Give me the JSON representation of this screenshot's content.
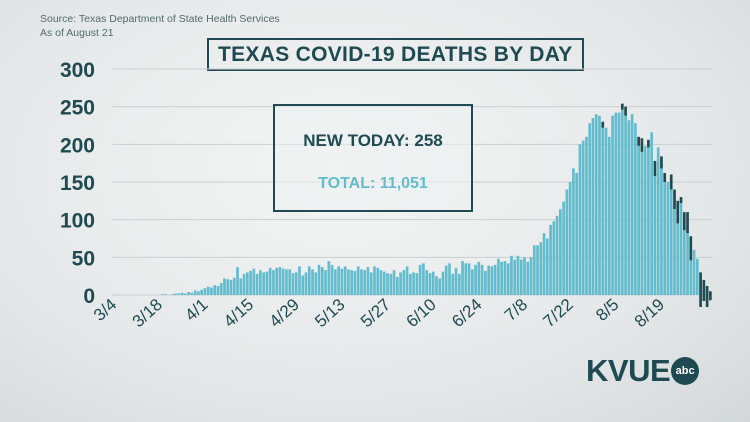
{
  "source": {
    "line1": "Source: Texas Department of State Health Services",
    "line2": "As of August 21"
  },
  "callout": {
    "new_today": "NEW TODAY: 258",
    "total": "TOTAL: 11,051"
  },
  "logo": {
    "wordmark": "KVUE",
    "badge": "abc"
  },
  "colors": {
    "bar": "#62bccd",
    "bar_dark": "#1f4a52",
    "text": "#1f4a52",
    "accent": "#62bccd"
  },
  "chart_data": {
    "type": "bar",
    "title": "TEXAS COVID-19 DEATHS BY DAY",
    "xlabel": "",
    "ylabel": "",
    "ylim": [
      0,
      300
    ],
    "yticks": [
      0,
      50,
      100,
      150,
      200,
      250,
      300
    ],
    "xtick_labels": [
      "3/4",
      "3/18",
      "4/1",
      "4/15",
      "4/29",
      "5/13",
      "5/27",
      "6/10",
      "6/24",
      "7/8",
      "7/22",
      "8/5",
      "8/19"
    ],
    "grid": true,
    "start": "3/4",
    "end": "8/21",
    "values": [
      0,
      0,
      0,
      0,
      0,
      0,
      0,
      0,
      0,
      0,
      0,
      0,
      0,
      0,
      0,
      1,
      1,
      0,
      1,
      2,
      2,
      3,
      2,
      4,
      3,
      6,
      5,
      7,
      9,
      11,
      10,
      13,
      12,
      16,
      22,
      21,
      20,
      23,
      37,
      22,
      28,
      30,
      32,
      35,
      28,
      33,
      30,
      31,
      36,
      33,
      36,
      37,
      35,
      34,
      34,
      29,
      30,
      38,
      26,
      30,
      38,
      34,
      30,
      40,
      37,
      33,
      45,
      40,
      34,
      38,
      35,
      38,
      34,
      33,
      32,
      38,
      34,
      33,
      37,
      30,
      38,
      36,
      33,
      31,
      29,
      28,
      33,
      24,
      30,
      33,
      38,
      28,
      30,
      29,
      40,
      42,
      33,
      29,
      31,
      25,
      22,
      31,
      39,
      42,
      28,
      36,
      28,
      45,
      42,
      42,
      34,
      40,
      44,
      40,
      32,
      39,
      38,
      40,
      48,
      44,
      45,
      42,
      52,
      47,
      52,
      47,
      50,
      44,
      50,
      66,
      66,
      70,
      82,
      75,
      93,
      98,
      105,
      114,
      124,
      140,
      150,
      168,
      162,
      200,
      205,
      210,
      228,
      235,
      240,
      238,
      230,
      222,
      210,
      238,
      242,
      242,
      254,
      250,
      232,
      240,
      228,
      210,
      208,
      198,
      206,
      216,
      178,
      196,
      184,
      162,
      150,
      160,
      140,
      125,
      130,
      110,
      110,
      78,
      60,
      48,
      30,
      20,
      12,
      5
    ],
    "dark_values": [
      0,
      0,
      0,
      0,
      0,
      0,
      0,
      0,
      0,
      0,
      0,
      0,
      0,
      0,
      0,
      0,
      0,
      0,
      0,
      0,
      0,
      0,
      0,
      0,
      0,
      0,
      0,
      0,
      0,
      0,
      0,
      0,
      0,
      0,
      0,
      0,
      0,
      0,
      0,
      0,
      0,
      0,
      0,
      0,
      0,
      0,
      0,
      0,
      0,
      0,
      0,
      0,
      0,
      0,
      0,
      0,
      0,
      0,
      0,
      0,
      0,
      0,
      0,
      0,
      0,
      0,
      0,
      0,
      0,
      0,
      0,
      0,
      0,
      0,
      0,
      0,
      0,
      0,
      0,
      0,
      0,
      0,
      0,
      0,
      0,
      0,
      0,
      0,
      0,
      0,
      0,
      0,
      0,
      0,
      0,
      0,
      0,
      0,
      0,
      0,
      0,
      0,
      0,
      0,
      0,
      0,
      0,
      0,
      0,
      0,
      0,
      0,
      0,
      0,
      0,
      0,
      0,
      0,
      0,
      0,
      0,
      0,
      0,
      0,
      0,
      0,
      0,
      0,
      0,
      0,
      0,
      0,
      0,
      0,
      0,
      0,
      0,
      0,
      0,
      0,
      0,
      0,
      0,
      0,
      0,
      0,
      0,
      0,
      0,
      0,
      8,
      0,
      0,
      0,
      0,
      0,
      8,
      12,
      0,
      0,
      0,
      12,
      18,
      0,
      10,
      0,
      20,
      0,
      16,
      12,
      0,
      20,
      26,
      30,
      8,
      24,
      28,
      32,
      0,
      0,
      46,
      28,
      28,
      12,
      5
    ]
  }
}
